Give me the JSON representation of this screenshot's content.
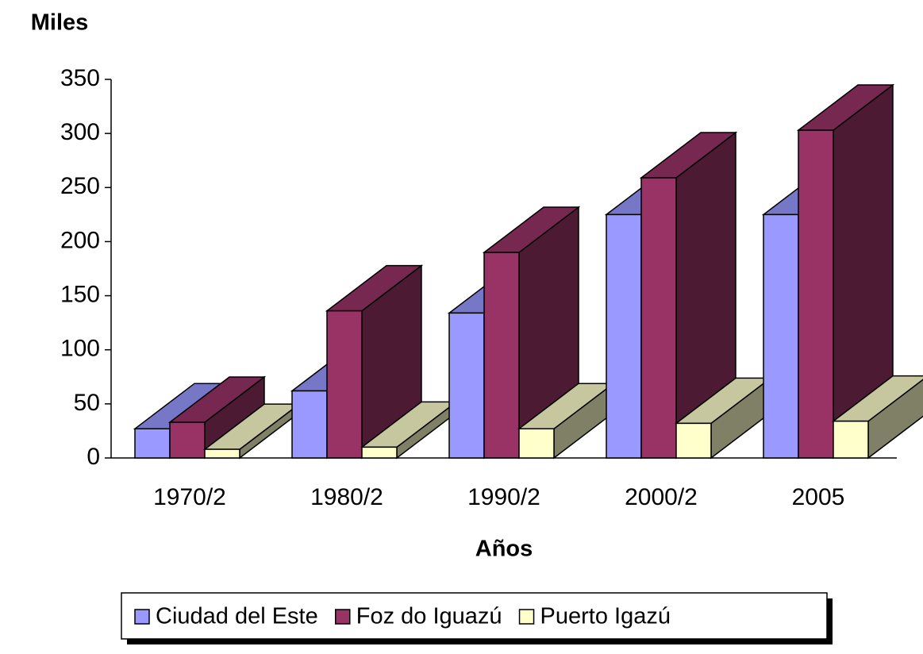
{
  "chart_data": {
    "type": "bar3d",
    "ylabel": "Miles",
    "xlabel": "Años",
    "categories": [
      "1970/2",
      "1980/2",
      "1990/2",
      "2000/2",
      "2005"
    ],
    "series": [
      {
        "name": "Ciudad del Este",
        "color": "#9999ff",
        "values": [
          27,
          62,
          134,
          225,
          225
        ]
      },
      {
        "name": "Foz do Iguazú",
        "color": "#993366",
        "values": [
          33,
          136,
          190,
          259,
          303
        ]
      },
      {
        "name": "Puerto Igazú",
        "color": "#ffffcc",
        "values": [
          8,
          10,
          27,
          32,
          34
        ]
      }
    ],
    "ylim": [
      0,
      350
    ],
    "yticks": [
      0,
      50,
      100,
      150,
      200,
      250,
      300,
      350
    ],
    "grid": false,
    "legend": "bottom"
  }
}
